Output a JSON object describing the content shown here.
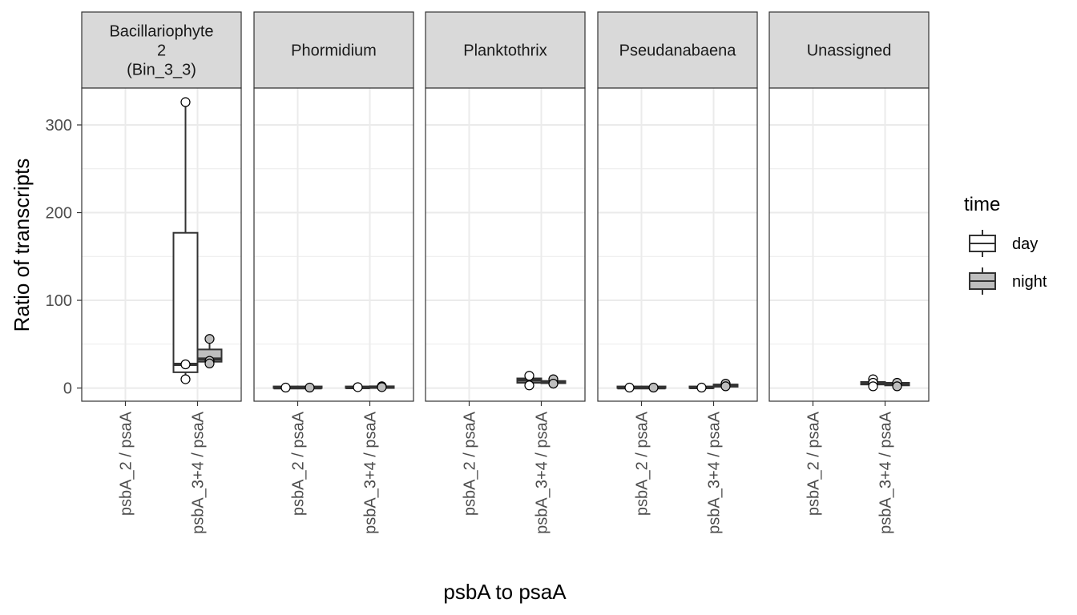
{
  "chart_data": {
    "type": "box",
    "xlabel": "psbA to psaA",
    "ylabel": "Ratio of transcripts",
    "ylim": [
      -15,
      342
    ],
    "yticks": [
      0,
      100,
      200,
      300
    ],
    "categories": [
      "psbA_2 / psaA",
      "psbA_3+4 / psaA"
    ],
    "legend": {
      "title": "time",
      "position": "right",
      "entries": [
        {
          "name": "day",
          "fill": "#ffffff"
        },
        {
          "name": "night",
          "fill": "#bebebe"
        }
      ]
    },
    "colors": {
      "day": "#ffffff",
      "night": "#bebebe",
      "strip": "#d9d9d9",
      "grid": "#ebebeb",
      "box_line": "#333333"
    },
    "grid": true,
    "panels": [
      {
        "label_lines": [
          "Bacillariophyte",
          "2",
          "(Bin_3_3)"
        ],
        "boxes": [
          {
            "category": "psbA_3+4 / psaA",
            "group": "day",
            "lower_whisker": 10,
            "q1": 18,
            "median": 27,
            "q3": 177,
            "upper_whisker": 326
          },
          {
            "category": "psbA_3+4 / psaA",
            "group": "night",
            "lower_whisker": 29,
            "q1": 30,
            "median": 33,
            "q3": 44,
            "upper_whisker": 56
          }
        ],
        "points": [
          {
            "category": "psbA_3+4 / psaA",
            "group": "day",
            "values": [
              326,
              27,
              10
            ]
          },
          {
            "category": "psbA_3+4 / psaA",
            "group": "night",
            "values": [
              56,
              31,
              28
            ]
          }
        ]
      },
      {
        "label_lines": [
          "Phormidium"
        ],
        "boxes": [
          {
            "category": "psbA_2 / psaA",
            "group": "day",
            "lower_whisker": 0,
            "q1": 0,
            "median": 0.3,
            "q3": 0.6,
            "upper_whisker": 0.8
          },
          {
            "category": "psbA_2 / psaA",
            "group": "night",
            "lower_whisker": 0,
            "q1": 0,
            "median": 0.3,
            "q3": 0.6,
            "upper_whisker": 0.8
          },
          {
            "category": "psbA_3+4 / psaA",
            "group": "day",
            "lower_whisker": 0,
            "q1": 0,
            "median": 0.5,
            "q3": 1,
            "upper_whisker": 1.5
          },
          {
            "category": "psbA_3+4 / psaA",
            "group": "night",
            "lower_whisker": 0,
            "q1": 0,
            "median": 1,
            "q3": 2,
            "upper_whisker": 3
          }
        ],
        "points": [
          {
            "category": "psbA_2 / psaA",
            "group": "day",
            "values": [
              0.5
            ]
          },
          {
            "category": "psbA_2 / psaA",
            "group": "night",
            "values": [
              0.5
            ]
          },
          {
            "category": "psbA_3+4 / psaA",
            "group": "day",
            "values": [
              1
            ]
          },
          {
            "category": "psbA_3+4 / psaA",
            "group": "night",
            "values": [
              2,
              1
            ]
          }
        ]
      },
      {
        "label_lines": [
          "Planktothrix"
        ],
        "boxes": [
          {
            "category": "psbA_3+4 / psaA",
            "group": "day",
            "lower_whisker": 3,
            "q1": 6,
            "median": 9,
            "q3": 11,
            "upper_whisker": 14
          },
          {
            "category": "psbA_3+4 / psaA",
            "group": "night",
            "lower_whisker": 5,
            "q1": 5.5,
            "median": 7,
            "q3": 8,
            "upper_whisker": 10
          }
        ],
        "points": [
          {
            "category": "psbA_3+4 / psaA",
            "group": "day",
            "values": [
              14,
              3
            ]
          },
          {
            "category": "psbA_3+4 / psaA",
            "group": "night",
            "values": [
              10,
              5
            ]
          }
        ]
      },
      {
        "label_lines": [
          "Pseudanabaena"
        ],
        "boxes": [
          {
            "category": "psbA_2 / psaA",
            "group": "day",
            "lower_whisker": 0,
            "q1": 0,
            "median": 0.3,
            "q3": 0.6,
            "upper_whisker": 0.8
          },
          {
            "category": "psbA_2 / psaA",
            "group": "night",
            "lower_whisker": 0,
            "q1": 0,
            "median": 0.3,
            "q3": 0.6,
            "upper_whisker": 0.8
          },
          {
            "category": "psbA_3+4 / psaA",
            "group": "day",
            "lower_whisker": 0,
            "q1": 0,
            "median": 0.5,
            "q3": 1,
            "upper_whisker": 1.5
          },
          {
            "category": "psbA_3+4 / psaA",
            "group": "night",
            "lower_whisker": 1,
            "q1": 1.5,
            "median": 3,
            "q3": 4,
            "upper_whisker": 5
          }
        ],
        "points": [
          {
            "category": "psbA_2 / psaA",
            "group": "day",
            "values": [
              0.5
            ]
          },
          {
            "category": "psbA_2 / psaA",
            "group": "night",
            "values": [
              0.5
            ]
          },
          {
            "category": "psbA_3+4 / psaA",
            "group": "day",
            "values": [
              0.5
            ]
          },
          {
            "category": "psbA_3+4 / psaA",
            "group": "night",
            "values": [
              5,
              2
            ]
          }
        ]
      },
      {
        "label_lines": [
          "Unassigned"
        ],
        "boxes": [
          {
            "category": "psbA_3+4 / psaA",
            "group": "day",
            "lower_whisker": 2,
            "q1": 4,
            "median": 6,
            "q3": 7,
            "upper_whisker": 10
          },
          {
            "category": "psbA_3+4 / psaA",
            "group": "night",
            "lower_whisker": 2,
            "q1": 3,
            "median": 5,
            "q3": 6,
            "upper_whisker": 6
          }
        ],
        "points": [
          {
            "category": "psbA_3+4 / psaA",
            "group": "day",
            "values": [
              10,
              6,
              2
            ]
          },
          {
            "category": "psbA_3+4 / psaA",
            "group": "night",
            "values": [
              6,
              2
            ]
          }
        ]
      }
    ]
  }
}
